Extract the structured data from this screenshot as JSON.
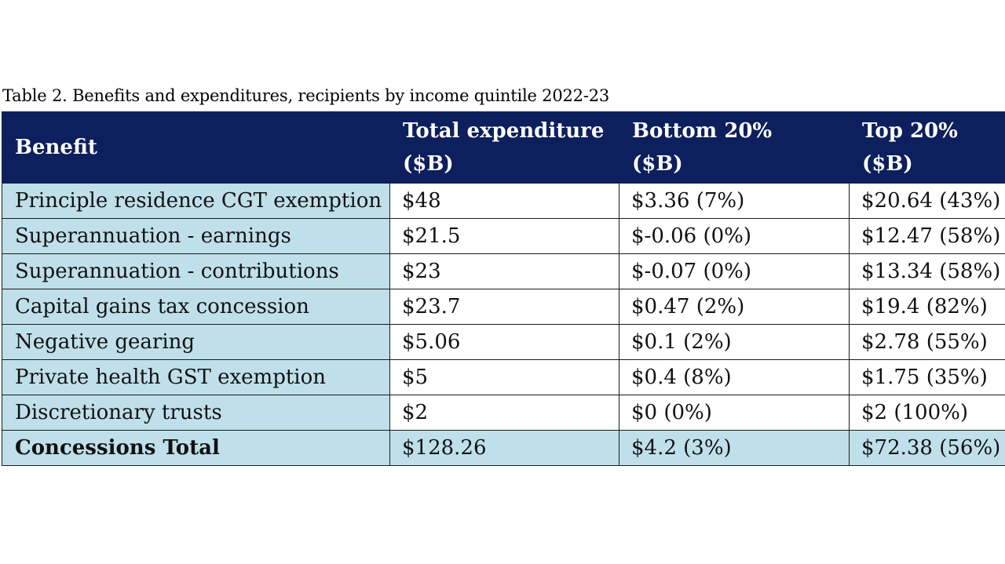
{
  "caption": "Table 2. Benefits and expenditures, recipients by income quintile 2022-23",
  "headers": {
    "benefit": "Benefit",
    "total_line1": "Total expenditure",
    "total_line2": "($B)",
    "bottom_line1": "Bottom 20%",
    "bottom_line2": "($B)",
    "top_line1": "Top 20%",
    "top_line2": "($B)"
  },
  "rows": [
    {
      "benefit": "Principle residence CGT exemption",
      "total": "$48",
      "bottom": "$3.36 (7%)",
      "top": "$20.64 (43%)"
    },
    {
      "benefit": "Superannuation - earnings",
      "total": "$21.5",
      "bottom": "$-0.06 (0%)",
      "top": "$12.47 (58%)"
    },
    {
      "benefit": "Superannuation - contributions",
      "total": "$23",
      "bottom": "$-0.07 (0%)",
      "top": "$13.34 (58%)"
    },
    {
      "benefit": "Capital gains tax concession",
      "total": "$23.7",
      "bottom": "$0.47 (2%)",
      "top": "$19.4 (82%)"
    },
    {
      "benefit": "Negative gearing",
      "total": "$5.06",
      "bottom": "$0.1 (2%)",
      "top": "$2.78 (55%)"
    },
    {
      "benefit": "Private health GST exemption",
      "total": "$5",
      "bottom": "$0.4 (8%)",
      "top": "$1.75 (35%)"
    },
    {
      "benefit": "Discretionary trusts",
      "total": "$2",
      "bottom": "$0 (0%)",
      "top": "$2 (100%)"
    }
  ],
  "total_row": {
    "benefit": "Concessions Total",
    "total": "$128.26",
    "bottom": "$4.2 (3%)",
    "top": "$72.38 (56%)"
  },
  "colors": {
    "header_bg": "#0d1f5c",
    "benefit_col_bg": "#bfe0ea"
  }
}
